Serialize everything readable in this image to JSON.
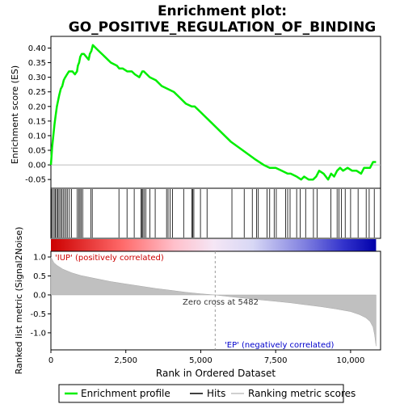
{
  "chart_data": {
    "type": "line",
    "title_line1": "Enrichment plot:",
    "title_line2": "GO_POSITIVE_REGULATION_OF_BINDING",
    "top_panel": {
      "ylabel": "Enrichment score (ES)",
      "ylim": [
        -0.08,
        0.44
      ],
      "yticks": [
        "0.40",
        "0.35",
        "0.30",
        "0.25",
        "0.20",
        "0.15",
        "0.10",
        "0.05",
        "0.00",
        "-0.05"
      ],
      "ytick_values": [
        0.4,
        0.35,
        0.3,
        0.25,
        0.2,
        0.15,
        0.1,
        0.05,
        0.0,
        -0.05
      ],
      "series_name": "Enrichment profile",
      "series_color": "#00ee00",
      "x": [
        0,
        40,
        80,
        120,
        160,
        200,
        240,
        280,
        330,
        380,
        430,
        480,
        540,
        600,
        660,
        720,
        800,
        870,
        900,
        940,
        980,
        1030,
        1100,
        1180,
        1260,
        1300,
        1350,
        1400,
        1600,
        1800,
        2000,
        2200,
        2280,
        2400,
        2550,
        2700,
        2800,
        2950,
        3000,
        3050,
        3100,
        3200,
        3300,
        3500,
        3700,
        3900,
        4100,
        4300,
        4500,
        4700,
        4800,
        5000,
        5300,
        5600,
        6000,
        6400,
        6800,
        7100,
        7300,
        7500,
        7700,
        7900,
        8000,
        8200,
        8350,
        8450,
        8600,
        8750,
        8850,
        8950,
        9100,
        9250,
        9350,
        9450,
        9550,
        9650,
        9750,
        9900,
        10050,
        10200,
        10350,
        10450,
        10550,
        10650,
        10750,
        10850
      ],
      "y": [
        0.0,
        0.06,
        0.1,
        0.14,
        0.17,
        0.2,
        0.22,
        0.24,
        0.26,
        0.27,
        0.29,
        0.3,
        0.31,
        0.32,
        0.32,
        0.32,
        0.31,
        0.32,
        0.34,
        0.35,
        0.37,
        0.38,
        0.38,
        0.37,
        0.36,
        0.38,
        0.39,
        0.41,
        0.39,
        0.37,
        0.35,
        0.34,
        0.33,
        0.33,
        0.32,
        0.32,
        0.31,
        0.3,
        0.31,
        0.32,
        0.32,
        0.31,
        0.3,
        0.29,
        0.27,
        0.26,
        0.25,
        0.23,
        0.21,
        0.2,
        0.2,
        0.18,
        0.15,
        0.12,
        0.08,
        0.05,
        0.02,
        0.0,
        -0.01,
        -0.01,
        -0.02,
        -0.03,
        -0.03,
        -0.04,
        -0.05,
        -0.04,
        -0.05,
        -0.05,
        -0.04,
        -0.02,
        -0.03,
        -0.05,
        -0.03,
        -0.04,
        -0.02,
        -0.01,
        -0.02,
        -0.01,
        -0.02,
        -0.02,
        -0.03,
        -0.01,
        -0.01,
        -0.01,
        0.01,
        0.01
      ]
    },
    "hits_panel": {
      "series_name": "Hits",
      "hit_positions": [
        20,
        60,
        110,
        150,
        190,
        230,
        270,
        320,
        360,
        410,
        460,
        510,
        560,
        620,
        690,
        880,
        930,
        970,
        1010,
        1060,
        1330,
        1380,
        2270,
        2540,
        2780,
        3010,
        3040,
        3070,
        3110,
        3170,
        3300,
        3480,
        3860,
        3910,
        3980,
        4060,
        4430,
        4700,
        4730,
        4770,
        4990,
        5210,
        6040,
        6450,
        6720,
        6860,
        6920,
        7210,
        7300,
        7450,
        7520,
        7830,
        7900,
        7980,
        8200,
        8320,
        8500,
        8760,
        8880,
        9340,
        9550,
        9610,
        9690,
        9820,
        10000,
        10250,
        10520,
        10620,
        10790
      ]
    },
    "bottom_panel": {
      "ylabel_line1": "Ranked list metric (Signal2Noise)",
      "ylim": [
        -1.45,
        1.15
      ],
      "yticks": [
        "1.0",
        "0.5",
        "0.0",
        "-0.5",
        "-1.0"
      ],
      "ytick_values": [
        1.0,
        0.5,
        0.0,
        -0.5,
        -1.0
      ],
      "series_name": "Ranking metric scores",
      "series_color": "#c0c0c0",
      "x": [
        0,
        50,
        100,
        200,
        400,
        700,
        1000,
        1500,
        2000,
        2500,
        3000,
        3500,
        4000,
        4500,
        5000,
        5482,
        6000,
        6500,
        7000,
        7500,
        8000,
        8500,
        9000,
        9500,
        10000,
        10300,
        10500,
        10650,
        10750,
        10800,
        10850
      ],
      "values": [
        1.0,
        0.92,
        0.85,
        0.78,
        0.68,
        0.58,
        0.51,
        0.43,
        0.35,
        0.29,
        0.23,
        0.17,
        0.12,
        0.07,
        0.03,
        0.0,
        -0.05,
        -0.09,
        -0.13,
        -0.17,
        -0.21,
        -0.26,
        -0.31,
        -0.37,
        -0.44,
        -0.52,
        -0.6,
        -0.7,
        -0.85,
        -1.05,
        -1.35
      ],
      "label_positive": "'IUP' (positively correlated)",
      "label_negative": "'EP' (negatively correlated)",
      "zero_cross_label": "Zero cross at 5482",
      "zero_cross": 5482
    },
    "xlabel": "Rank in Ordered Dataset",
    "xlim": [
      0,
      11000
    ],
    "xticks": [
      "0",
      "2,500",
      "5,000",
      "7,500",
      "10,000"
    ],
    "xtick_values": [
      0,
      2500,
      5000,
      7500,
      10000
    ],
    "list_length": 10850,
    "legend": {
      "placement": "bottom",
      "items": [
        {
          "label": "Enrichment profile",
          "color": "#00ee00"
        },
        {
          "label": "Hits",
          "color": "#000000"
        },
        {
          "label": "Ranking metric scores",
          "color": "#c0c0c0"
        }
      ]
    }
  }
}
